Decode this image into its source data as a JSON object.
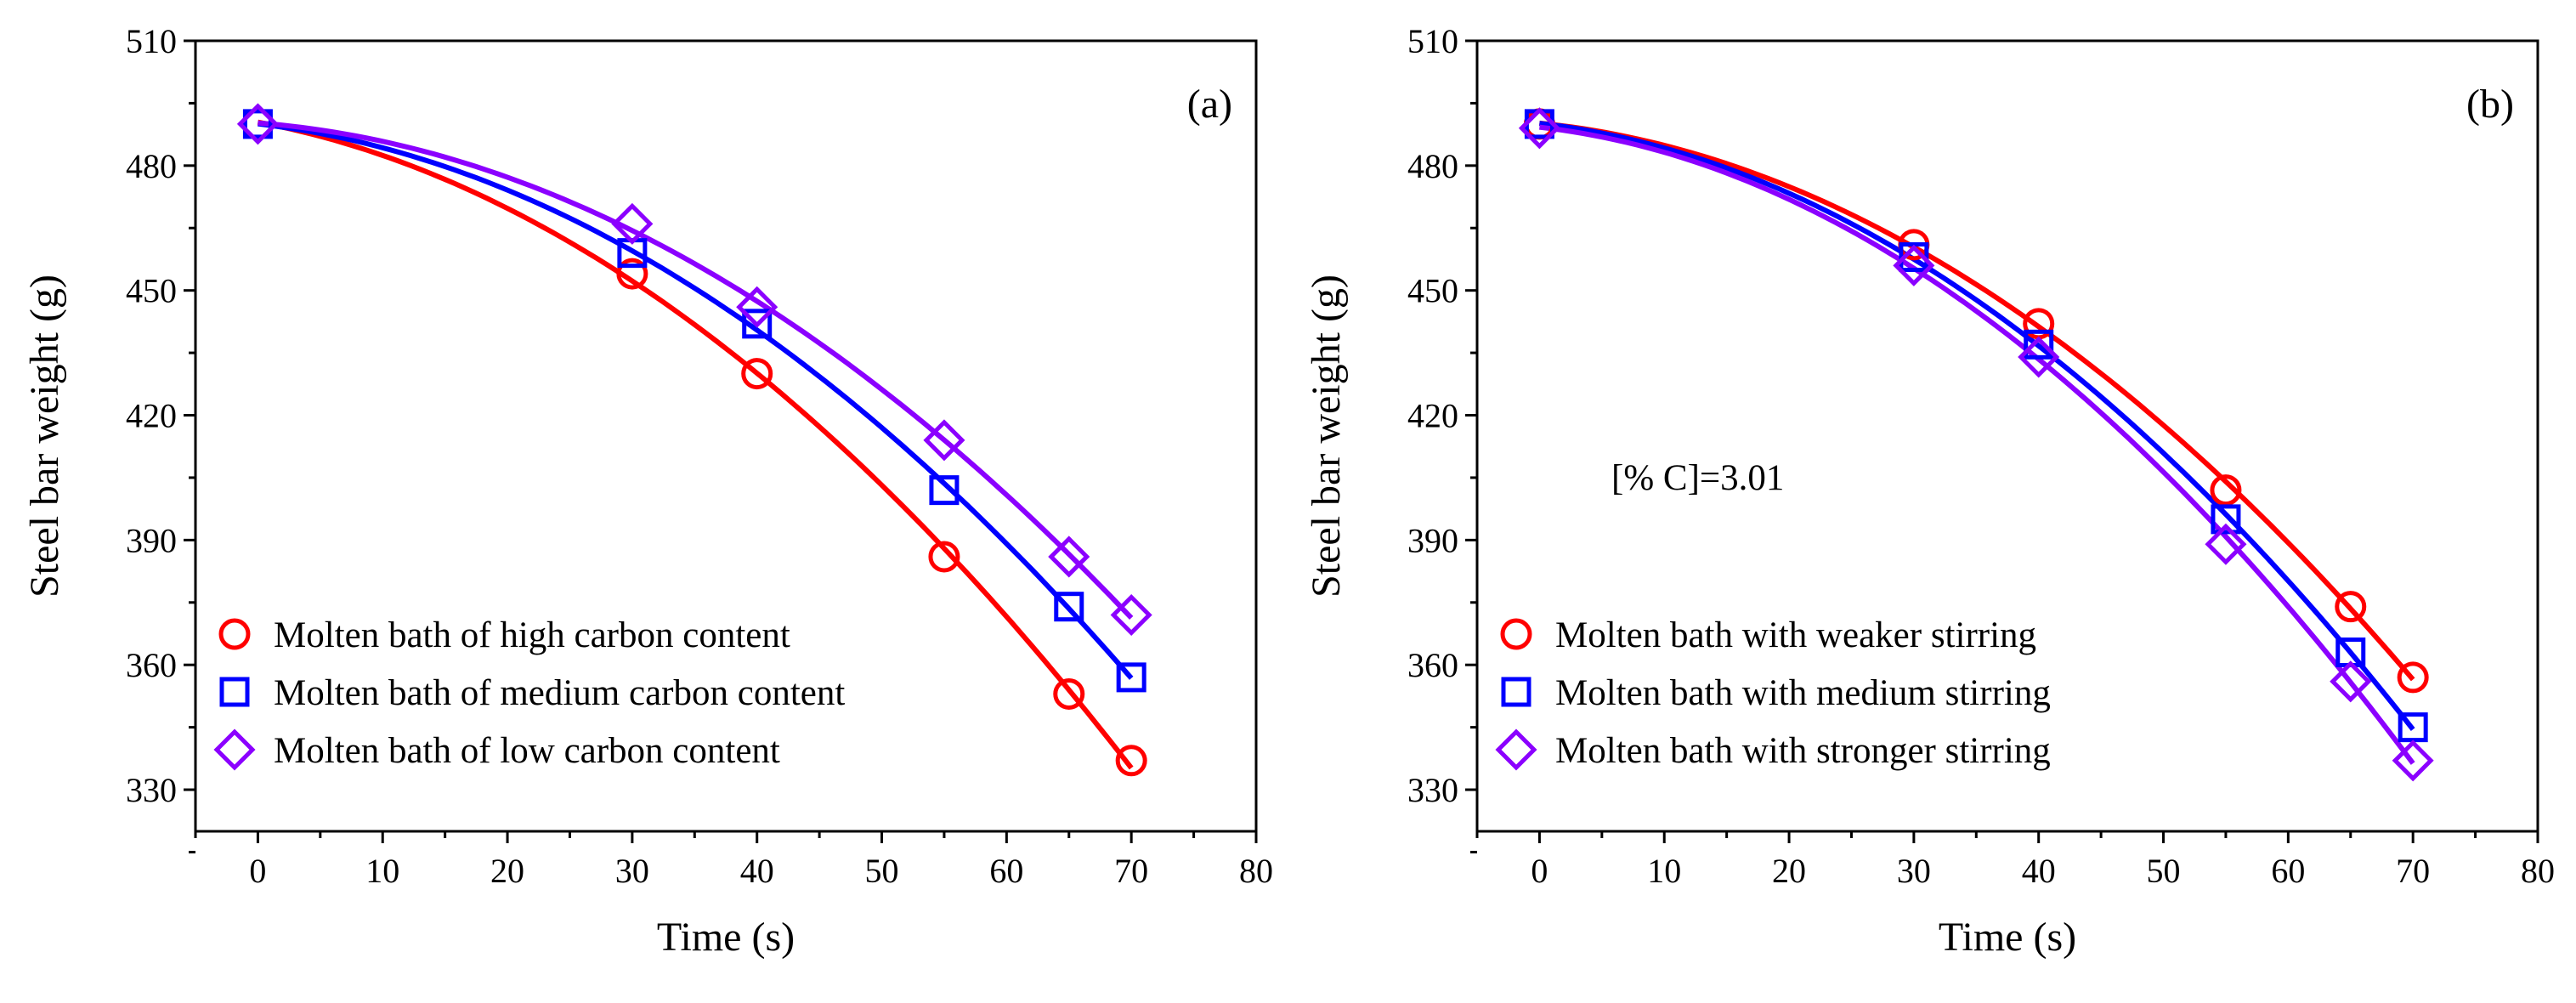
{
  "chart_data": [
    {
      "type": "scatter",
      "panel_label": "(a)",
      "xlabel": "Time (s)",
      "ylabel": "Steel bar weight (g)",
      "xlim": [
        -5,
        80
      ],
      "ylim": [
        320,
        510
      ],
      "xticks": [
        0,
        10,
        20,
        30,
        40,
        50,
        60,
        70,
        80
      ],
      "yticks": [
        330,
        360,
        390,
        420,
        450,
        480,
        510
      ],
      "legend_position": "bottom-left",
      "annotation": "",
      "series": [
        {
          "name": "Molten bath of high carbon content",
          "marker": "circle",
          "color": "#ff0000",
          "x": [
            0,
            30,
            40,
            55,
            65,
            70
          ],
          "y": [
            490,
            454,
            430,
            386,
            353,
            337
          ]
        },
        {
          "name": "Molten bath of medium carbon content",
          "marker": "square",
          "color": "#0000ff",
          "x": [
            0,
            30,
            40,
            55,
            65,
            70
          ],
          "y": [
            490,
            459,
            442,
            402,
            374,
            357
          ]
        },
        {
          "name": "Molten bath of low carbon content",
          "marker": "diamond",
          "color": "#8b00ff",
          "x": [
            0,
            30,
            40,
            55,
            65,
            70
          ],
          "y": [
            490,
            466,
            446,
            414,
            386,
            372
          ]
        }
      ]
    },
    {
      "type": "scatter",
      "panel_label": "(b)",
      "xlabel": "Time (s)",
      "ylabel": "Steel bar weight (g)",
      "xlim": [
        -5,
        80
      ],
      "ylim": [
        320,
        510
      ],
      "xticks": [
        0,
        10,
        20,
        30,
        40,
        50,
        60,
        70,
        80
      ],
      "yticks": [
        330,
        360,
        390,
        420,
        450,
        480,
        510
      ],
      "legend_position": "bottom-left",
      "annotation": "[% C]=3.01",
      "series": [
        {
          "name": "Molten bath with weaker stirring",
          "marker": "circle",
          "color": "#ff0000",
          "x": [
            0,
            30,
            40,
            55,
            65,
            70
          ],
          "y": [
            490,
            461,
            442,
            402,
            374,
            357
          ]
        },
        {
          "name": "Molten bath with medium stirring",
          "marker": "square",
          "color": "#0000ff",
          "x": [
            0,
            30,
            40,
            55,
            65,
            70
          ],
          "y": [
            490,
            458,
            437,
            395,
            363,
            345
          ]
        },
        {
          "name": "Molten bath with stronger stirring",
          "marker": "diamond",
          "color": "#8b00ff",
          "x": [
            0,
            30,
            40,
            55,
            65,
            70
          ],
          "y": [
            489,
            456,
            434,
            389,
            356,
            337
          ]
        }
      ]
    }
  ]
}
